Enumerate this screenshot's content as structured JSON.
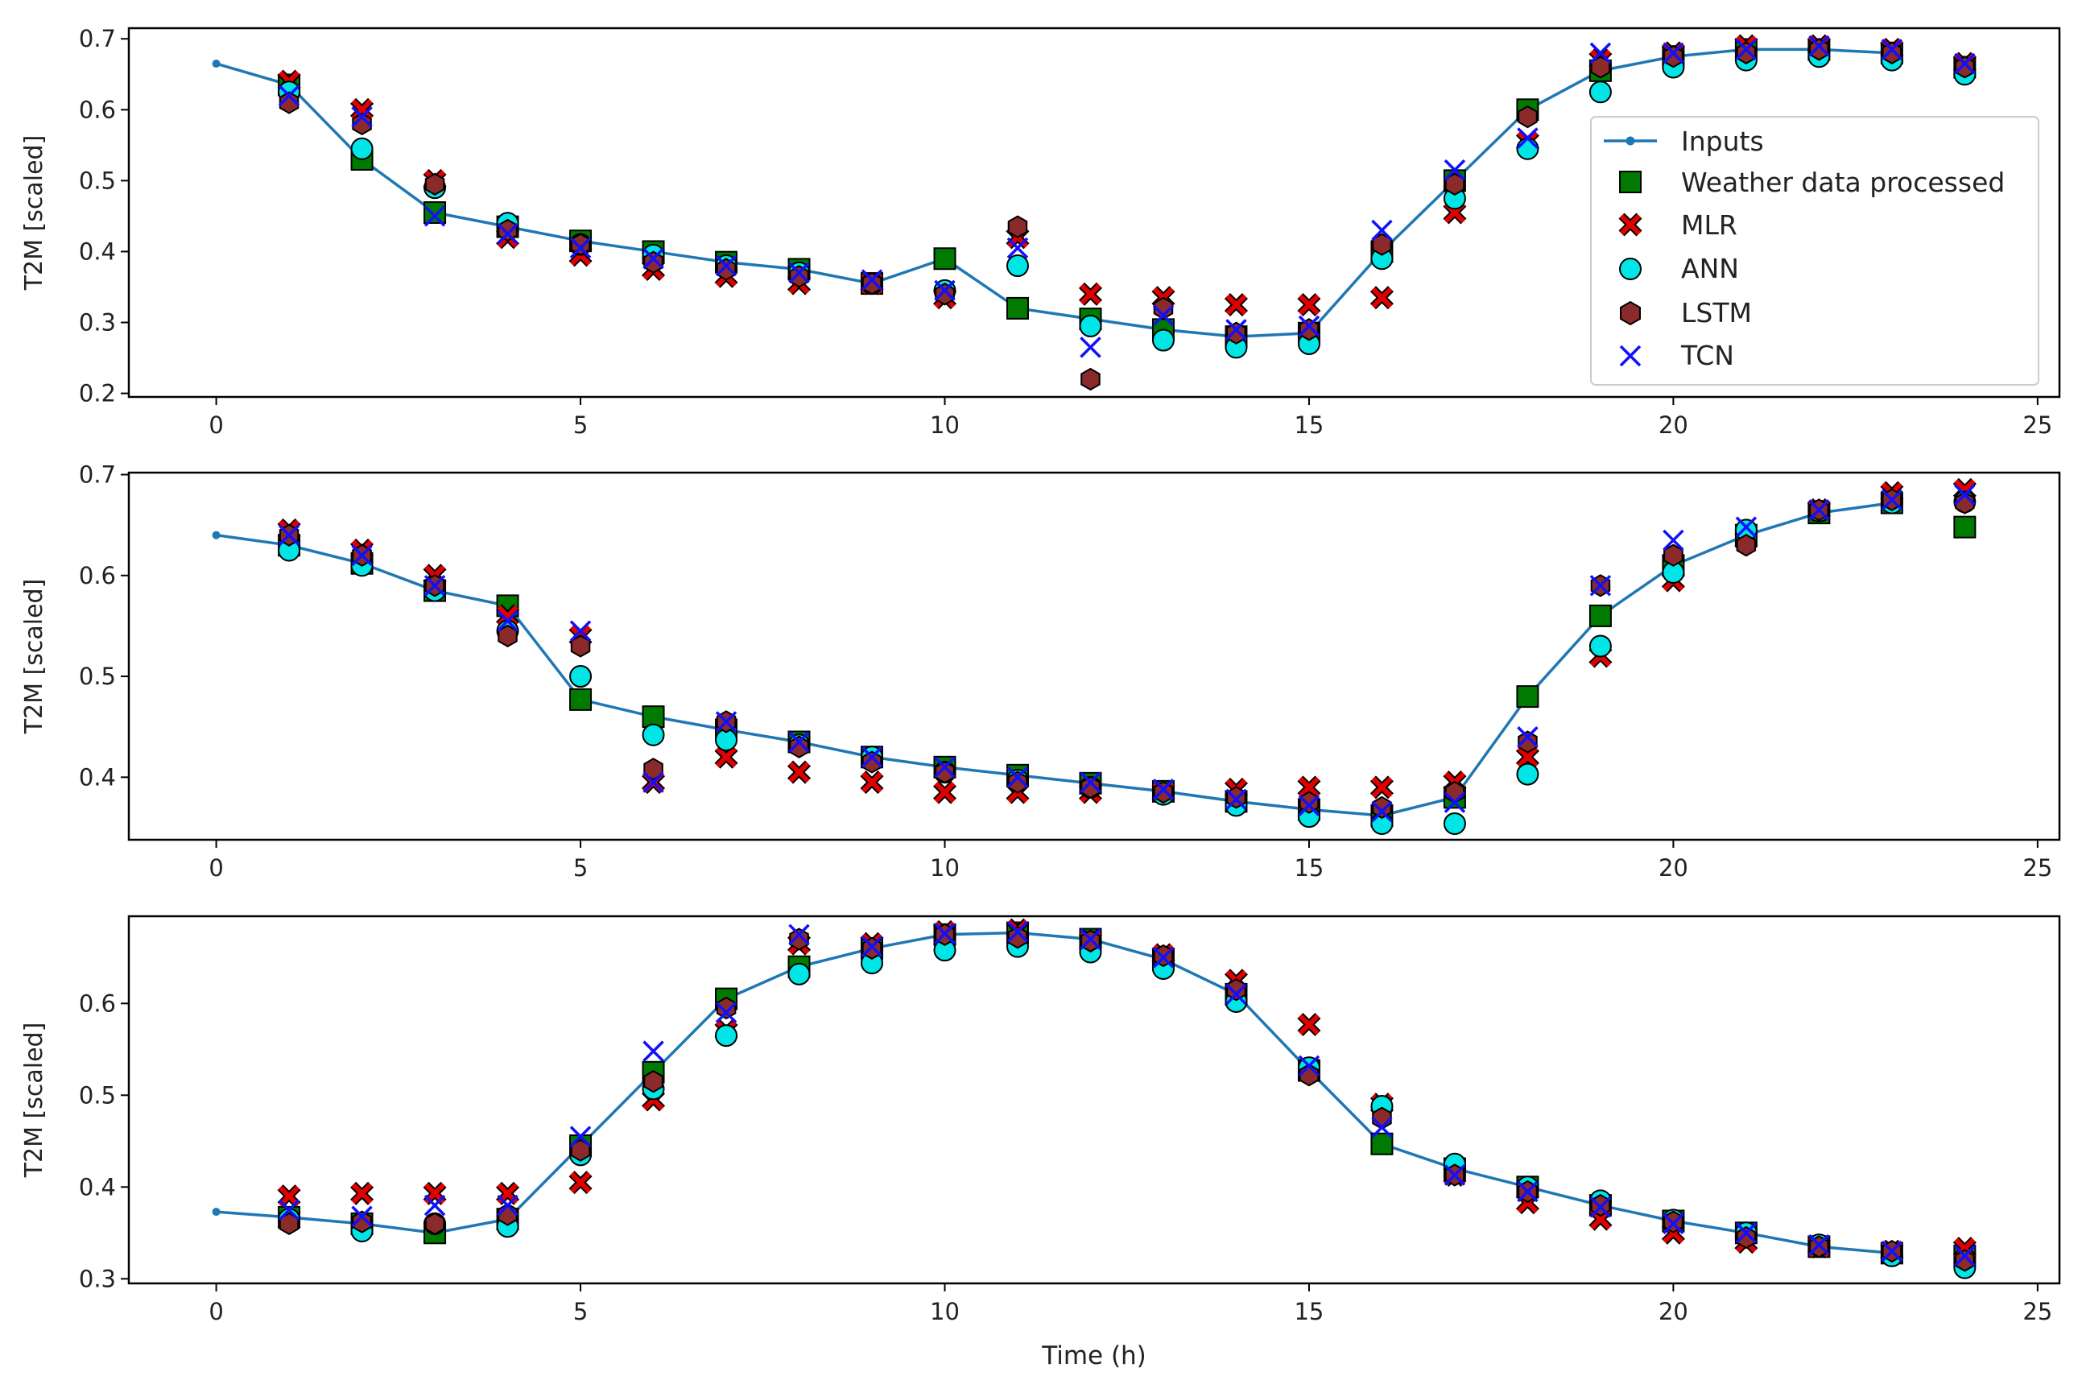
{
  "chart_data": [
    {
      "type": "line",
      "ylabel": "T2M [scaled]",
      "xlabel": "",
      "xlim": [
        -1.2,
        25.3
      ],
      "ylim": [
        0.195,
        0.715
      ],
      "xticks": [
        0,
        5,
        10,
        15,
        20,
        25
      ],
      "yticks": [
        0.2,
        0.3,
        0.4,
        0.5,
        0.6,
        0.7
      ],
      "yticklabels": [
        "0.2",
        "0.3",
        "0.4",
        "0.5",
        "0.6",
        "0.7"
      ],
      "legend": {
        "position": "right",
        "entries": [
          "Inputs",
          "Weather data processed",
          "MLR",
          "ANN",
          "LSTM",
          "TCN"
        ]
      },
      "inputs": {
        "x": [
          0,
          1,
          2,
          3,
          4,
          5,
          6,
          7,
          8,
          9,
          10,
          11,
          12,
          13,
          14,
          15,
          16,
          17,
          18,
          19,
          20,
          21,
          22,
          23
        ],
        "y": [
          0.665,
          0.635,
          0.53,
          0.455,
          0.435,
          0.415,
          0.4,
          0.385,
          0.375,
          0.355,
          0.39,
          0.32,
          0.305,
          0.29,
          0.28,
          0.285,
          0.4,
          0.5,
          0.6,
          0.655,
          0.675,
          0.685,
          0.685,
          0.68
        ]
      },
      "labels": {
        "x": [
          1,
          2,
          3,
          4,
          5,
          6,
          7,
          8,
          9,
          10,
          11,
          12,
          13,
          14,
          15,
          16,
          17,
          18,
          19,
          20,
          21,
          22,
          23,
          24
        ],
        "y": [
          0.635,
          0.53,
          0.455,
          0.435,
          0.415,
          0.4,
          0.385,
          0.375,
          0.355,
          0.39,
          0.32,
          0.305,
          0.29,
          0.28,
          0.285,
          0.4,
          0.5,
          0.6,
          0.655,
          0.675,
          0.685,
          0.685,
          0.68,
          0.66
        ]
      },
      "mlr": {
        "x": [
          1,
          2,
          3,
          4,
          5,
          6,
          7,
          8,
          9,
          10,
          11,
          12,
          13,
          14,
          15,
          16,
          17,
          18,
          19,
          20,
          21,
          22,
          23,
          24
        ],
        "y": [
          0.64,
          0.6,
          0.5,
          0.42,
          0.395,
          0.375,
          0.365,
          0.355,
          0.355,
          0.335,
          0.42,
          0.34,
          0.335,
          0.325,
          0.325,
          0.335,
          0.455,
          0.555,
          0.67,
          0.68,
          0.69,
          0.69,
          0.685,
          0.665
        ]
      },
      "ann": {
        "x": [
          1,
          2,
          3,
          4,
          5,
          6,
          7,
          8,
          9,
          10,
          11,
          12,
          13,
          14,
          15,
          16,
          17,
          18,
          19,
          20,
          21,
          22,
          23,
          24
        ],
        "y": [
          0.625,
          0.545,
          0.49,
          0.44,
          0.41,
          0.395,
          0.38,
          0.37,
          0.355,
          0.345,
          0.38,
          0.295,
          0.275,
          0.265,
          0.27,
          0.39,
          0.475,
          0.545,
          0.625,
          0.66,
          0.67,
          0.675,
          0.67,
          0.65
        ]
      },
      "lstm": {
        "x": [
          1,
          2,
          3,
          4,
          5,
          6,
          7,
          8,
          9,
          10,
          11,
          12,
          13,
          14,
          15,
          16,
          17,
          18,
          19,
          20,
          21,
          22,
          23,
          24
        ],
        "y": [
          0.61,
          0.58,
          0.495,
          0.43,
          0.41,
          0.385,
          0.375,
          0.365,
          0.355,
          0.34,
          0.435,
          0.22,
          0.32,
          0.285,
          0.29,
          0.41,
          0.495,
          0.59,
          0.66,
          0.675,
          0.68,
          0.685,
          0.68,
          0.66
        ]
      },
      "tcn": {
        "x": [
          1,
          2,
          3,
          4,
          5,
          6,
          7,
          8,
          9,
          10,
          11,
          12,
          13,
          14,
          15,
          16,
          17,
          18,
          19,
          20,
          21,
          22,
          23,
          24
        ],
        "y": [
          0.62,
          0.59,
          0.45,
          0.425,
          0.405,
          0.39,
          0.38,
          0.37,
          0.36,
          0.345,
          0.405,
          0.265,
          0.31,
          0.29,
          0.295,
          0.43,
          0.515,
          0.56,
          0.68,
          0.68,
          0.685,
          0.69,
          0.685,
          0.665
        ]
      }
    },
    {
      "type": "line",
      "ylabel": "T2M [scaled]",
      "xlabel": "",
      "xlim": [
        -1.2,
        25.3
      ],
      "ylim": [
        0.338,
        0.702
      ],
      "xticks": [
        0,
        5,
        10,
        15,
        20,
        25
      ],
      "yticks": [
        0.4,
        0.5,
        0.6,
        0.7
      ],
      "yticklabels": [
        "0.4",
        "0.5",
        "0.6",
        "0.7"
      ],
      "inputs": {
        "x": [
          0,
          1,
          2,
          3,
          4,
          5,
          6,
          7,
          8,
          9,
          10,
          11,
          12,
          13,
          14,
          15,
          16,
          17,
          18,
          19,
          20,
          21,
          22,
          23
        ],
        "y": [
          0.64,
          0.63,
          0.612,
          0.585,
          0.57,
          0.477,
          0.46,
          0.447,
          0.435,
          0.42,
          0.41,
          0.402,
          0.394,
          0.386,
          0.376,
          0.368,
          0.362,
          0.38,
          0.48,
          0.56,
          0.61,
          0.64,
          0.662,
          0.672
        ]
      },
      "labels": {
        "x": [
          1,
          2,
          3,
          4,
          5,
          6,
          7,
          8,
          9,
          10,
          11,
          12,
          13,
          14,
          15,
          16,
          17,
          18,
          19,
          20,
          21,
          22,
          23,
          24
        ],
        "y": [
          0.63,
          0.612,
          0.585,
          0.57,
          0.477,
          0.46,
          0.447,
          0.435,
          0.42,
          0.41,
          0.402,
          0.394,
          0.386,
          0.376,
          0.368,
          0.362,
          0.38,
          0.48,
          0.56,
          0.61,
          0.64,
          0.662,
          0.672,
          0.648
        ]
      },
      "mlr": {
        "x": [
          1,
          2,
          3,
          4,
          5,
          6,
          7,
          8,
          9,
          10,
          11,
          12,
          13,
          14,
          15,
          16,
          17,
          18,
          19,
          20,
          21,
          22,
          23,
          24
        ],
        "y": [
          0.645,
          0.625,
          0.6,
          0.56,
          0.54,
          0.395,
          0.42,
          0.405,
          0.395,
          0.385,
          0.385,
          0.385,
          0.385,
          0.388,
          0.39,
          0.39,
          0.395,
          0.42,
          0.52,
          0.595,
          0.635,
          0.665,
          0.682,
          0.685
        ]
      },
      "ann": {
        "x": [
          1,
          2,
          3,
          4,
          5,
          6,
          7,
          8,
          9,
          10,
          11,
          12,
          13,
          14,
          15,
          16,
          17,
          18,
          19,
          20,
          21,
          22,
          23,
          24
        ],
        "y": [
          0.625,
          0.61,
          0.585,
          0.545,
          0.5,
          0.442,
          0.437,
          0.432,
          0.42,
          0.405,
          0.397,
          0.39,
          0.383,
          0.372,
          0.361,
          0.354,
          0.354,
          0.403,
          0.53,
          0.603,
          0.645,
          0.664,
          0.672,
          0.673
        ]
      },
      "lstm": {
        "x": [
          1,
          2,
          3,
          4,
          5,
          6,
          7,
          8,
          9,
          10,
          11,
          12,
          13,
          14,
          15,
          16,
          17,
          18,
          19,
          20,
          21,
          22,
          23,
          24
        ],
        "y": [
          0.64,
          0.62,
          0.59,
          0.54,
          0.53,
          0.408,
          0.455,
          0.43,
          0.415,
          0.405,
          0.395,
          0.39,
          0.385,
          0.38,
          0.375,
          0.37,
          0.385,
          0.435,
          0.59,
          0.62,
          0.63,
          0.665,
          0.675,
          0.672
        ]
      },
      "tcn": {
        "x": [
          1,
          2,
          3,
          4,
          5,
          6,
          7,
          8,
          9,
          10,
          11,
          12,
          13,
          14,
          15,
          16,
          17,
          18,
          19,
          20,
          21,
          22,
          23,
          24
        ],
        "y": [
          0.64,
          0.62,
          0.59,
          0.555,
          0.545,
          0.395,
          0.455,
          0.435,
          0.42,
          0.41,
          0.4,
          0.395,
          0.388,
          0.378,
          0.372,
          0.366,
          0.375,
          0.44,
          0.59,
          0.635,
          0.648,
          0.665,
          0.675,
          0.68
        ]
      }
    },
    {
      "type": "line",
      "ylabel": "T2M [scaled]",
      "xlabel": "Time (h)",
      "xlim": [
        -1.2,
        25.3
      ],
      "ylim": [
        0.295,
        0.695
      ],
      "xticks": [
        0,
        5,
        10,
        15,
        20,
        25
      ],
      "yticks": [
        0.3,
        0.4,
        0.5,
        0.6
      ],
      "yticklabels": [
        "0.3",
        "0.4",
        "0.5",
        "0.6"
      ],
      "inputs": {
        "x": [
          0,
          1,
          2,
          3,
          4,
          5,
          6,
          7,
          8,
          9,
          10,
          11,
          12,
          13,
          14,
          15,
          16,
          17,
          18,
          19,
          20,
          21,
          22,
          23
        ],
        "y": [
          0.373,
          0.367,
          0.36,
          0.35,
          0.365,
          0.445,
          0.525,
          0.605,
          0.64,
          0.66,
          0.675,
          0.677,
          0.67,
          0.648,
          0.61,
          0.527,
          0.447,
          0.42,
          0.4,
          0.38,
          0.363,
          0.35,
          0.335,
          0.328
        ]
      },
      "labels": {
        "x": [
          1,
          2,
          3,
          4,
          5,
          6,
          7,
          8,
          9,
          10,
          11,
          12,
          13,
          14,
          15,
          16,
          17,
          18,
          19,
          20,
          21,
          22,
          23,
          24
        ],
        "y": [
          0.367,
          0.36,
          0.35,
          0.365,
          0.445,
          0.525,
          0.605,
          0.64,
          0.66,
          0.675,
          0.677,
          0.67,
          0.648,
          0.61,
          0.527,
          0.447,
          0.42,
          0.4,
          0.38,
          0.363,
          0.35,
          0.335,
          0.328,
          0.325
        ]
      },
      "mlr": {
        "x": [
          1,
          2,
          3,
          4,
          5,
          6,
          7,
          8,
          9,
          10,
          11,
          12,
          13,
          14,
          15,
          16,
          17,
          18,
          19,
          20,
          21,
          22,
          23,
          24
        ],
        "y": [
          0.39,
          0.393,
          0.393,
          0.393,
          0.405,
          0.495,
          0.57,
          0.665,
          0.665,
          0.678,
          0.68,
          0.668,
          0.653,
          0.625,
          0.577,
          0.49,
          0.413,
          0.383,
          0.365,
          0.35,
          0.34,
          0.335,
          0.33,
          0.333
        ]
      },
      "ann": {
        "x": [
          1,
          2,
          3,
          4,
          5,
          6,
          7,
          8,
          9,
          10,
          11,
          12,
          13,
          14,
          15,
          16,
          17,
          18,
          19,
          20,
          21,
          22,
          23,
          24
        ],
        "y": [
          0.365,
          0.352,
          0.36,
          0.357,
          0.435,
          0.507,
          0.565,
          0.632,
          0.644,
          0.658,
          0.662,
          0.656,
          0.638,
          0.602,
          0.53,
          0.488,
          0.425,
          0.4,
          0.385,
          0.364,
          0.35,
          0.337,
          0.325,
          0.312
        ]
      },
      "lstm": {
        "x": [
          1,
          2,
          3,
          4,
          5,
          6,
          7,
          8,
          9,
          10,
          11,
          12,
          13,
          14,
          15,
          16,
          17,
          18,
          19,
          20,
          21,
          22,
          23,
          24
        ],
        "y": [
          0.36,
          0.362,
          0.36,
          0.37,
          0.44,
          0.515,
          0.595,
          0.67,
          0.66,
          0.675,
          0.672,
          0.668,
          0.652,
          0.615,
          0.522,
          0.475,
          0.413,
          0.395,
          0.38,
          0.362,
          0.345,
          0.335,
          0.33,
          0.32
        ]
      },
      "tcn": {
        "x": [
          1,
          2,
          3,
          4,
          5,
          6,
          7,
          8,
          9,
          10,
          11,
          12,
          13,
          14,
          15,
          16,
          17,
          18,
          19,
          20,
          21,
          22,
          23,
          24
        ],
        "y": [
          0.375,
          0.368,
          0.38,
          0.38,
          0.455,
          0.548,
          0.59,
          0.675,
          0.662,
          0.676,
          0.678,
          0.67,
          0.65,
          0.61,
          0.532,
          0.465,
          0.413,
          0.395,
          0.378,
          0.36,
          0.35,
          0.337,
          0.33,
          0.325
        ]
      }
    }
  ],
  "style": {
    "inputs_color": "#1f77b4",
    "labels_color": "#007a00",
    "mlr_color": "#e00000",
    "ann_color": "#00e5e5",
    "lstm_color": "#8b2a2a",
    "tcn_color": "#1010ff",
    "edge_color": "#000000"
  },
  "legend_labels": [
    "Inputs",
    "Weather data processed",
    "MLR",
    "ANN",
    "LSTM",
    "TCN"
  ]
}
